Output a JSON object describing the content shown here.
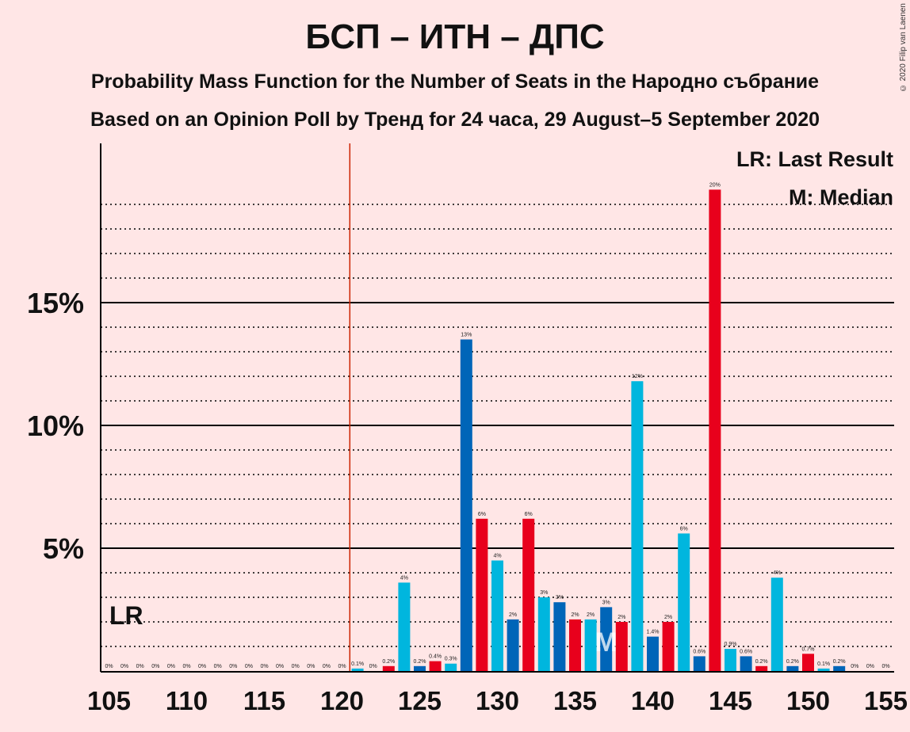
{
  "title": "БСП – ИТН – ДПС",
  "subtitle1": "Probability Mass Function for the Number of Seats in the Народно събрание",
  "subtitle2": "Based on an Opinion Poll by Тренд for 24 часа, 29 August–5 September 2020",
  "copyright": "© 2020 Filip van Laenen",
  "legend": {
    "last_result": "LR: Last Result",
    "median": "M: Median"
  },
  "markers": {
    "lr_label": "LR",
    "median_label": "M"
  },
  "colors": {
    "background": "#FFE6E6",
    "red": "#E8001C",
    "cyan": "#00B6DE",
    "blue": "#0065B8",
    "lr_line": "#CC2200"
  },
  "chart_data": {
    "type": "bar",
    "xlim": [
      105,
      155
    ],
    "ylim": [
      0,
      21
    ],
    "y_ticks": [
      5,
      10,
      15
    ],
    "y_tick_labels": [
      "5%",
      "10%",
      "15%"
    ],
    "x_ticks": [
      105,
      110,
      115,
      120,
      125,
      130,
      135,
      140,
      145,
      150,
      155
    ],
    "x_tick_labels": [
      "105",
      "110",
      "115",
      "120",
      "125",
      "130",
      "135",
      "140",
      "145",
      "150",
      "155"
    ],
    "last_result_seat": 121,
    "median_seat": 137,
    "bars": [
      {
        "seat": 105,
        "value": 0,
        "label": "0%",
        "color": "cyan"
      },
      {
        "seat": 106,
        "value": 0,
        "label": "0%",
        "color": "cyan"
      },
      {
        "seat": 107,
        "value": 0,
        "label": "0%",
        "color": "cyan"
      },
      {
        "seat": 108,
        "value": 0,
        "label": "0%",
        "color": "cyan"
      },
      {
        "seat": 109,
        "value": 0,
        "label": "0%",
        "color": "cyan"
      },
      {
        "seat": 110,
        "value": 0,
        "label": "0%",
        "color": "cyan"
      },
      {
        "seat": 111,
        "value": 0,
        "label": "0%",
        "color": "cyan"
      },
      {
        "seat": 112,
        "value": 0,
        "label": "0%",
        "color": "cyan"
      },
      {
        "seat": 113,
        "value": 0,
        "label": "0%",
        "color": "cyan"
      },
      {
        "seat": 114,
        "value": 0,
        "label": "0%",
        "color": "cyan"
      },
      {
        "seat": 115,
        "value": 0,
        "label": "0%",
        "color": "cyan"
      },
      {
        "seat": 116,
        "value": 0,
        "label": "0%",
        "color": "cyan"
      },
      {
        "seat": 117,
        "value": 0,
        "label": "0%",
        "color": "cyan"
      },
      {
        "seat": 118,
        "value": 0,
        "label": "0%",
        "color": "cyan"
      },
      {
        "seat": 119,
        "value": 0,
        "label": "0%",
        "color": "cyan"
      },
      {
        "seat": 120,
        "value": 0,
        "label": "0%",
        "color": "cyan"
      },
      {
        "seat": 121,
        "value": 0.1,
        "label": "0.1%",
        "color": "cyan"
      },
      {
        "seat": 122,
        "value": 0,
        "label": "0%",
        "color": "cyan"
      },
      {
        "seat": 123,
        "value": 0.2,
        "label": "0.2%",
        "color": "red"
      },
      {
        "seat": 124,
        "value": 3.6,
        "label": "4%",
        "color": "cyan"
      },
      {
        "seat": 125,
        "value": 0.2,
        "label": "0.2%",
        "color": "blue"
      },
      {
        "seat": 126,
        "value": 0.4,
        "label": "0.4%",
        "color": "red"
      },
      {
        "seat": 127,
        "value": 0.3,
        "label": "0.3%",
        "color": "cyan"
      },
      {
        "seat": 128,
        "value": 13.5,
        "label": "13%",
        "color": "blue"
      },
      {
        "seat": 129,
        "value": 6.2,
        "label": "6%",
        "color": "red"
      },
      {
        "seat": 130,
        "value": 4.5,
        "label": "4%",
        "color": "cyan"
      },
      {
        "seat": 131,
        "value": 2.1,
        "label": "2%",
        "color": "blue"
      },
      {
        "seat": 132,
        "value": 6.2,
        "label": "6%",
        "color": "red"
      },
      {
        "seat": 133,
        "value": 3.0,
        "label": "3%",
        "color": "cyan"
      },
      {
        "seat": 134,
        "value": 2.8,
        "label": "3%",
        "color": "blue"
      },
      {
        "seat": 135,
        "value": 2.1,
        "label": "2%",
        "color": "red"
      },
      {
        "seat": 136,
        "value": 2.1,
        "label": "2%",
        "color": "cyan"
      },
      {
        "seat": 137,
        "value": 2.6,
        "label": "3%",
        "color": "blue"
      },
      {
        "seat": 138,
        "value": 2.0,
        "label": "2%",
        "color": "red"
      },
      {
        "seat": 139,
        "value": 11.8,
        "label": "12%",
        "color": "cyan"
      },
      {
        "seat": 140,
        "value": 1.4,
        "label": "1.4%",
        "color": "blue"
      },
      {
        "seat": 141,
        "value": 2.0,
        "label": "2%",
        "color": "red"
      },
      {
        "seat": 142,
        "value": 5.6,
        "label": "6%",
        "color": "cyan"
      },
      {
        "seat": 143,
        "value": 0.6,
        "label": "0.6%",
        "color": "blue"
      },
      {
        "seat": 144,
        "value": 19.6,
        "label": "20%",
        "color": "red"
      },
      {
        "seat": 145,
        "value": 0.9,
        "label": "0.9%",
        "color": "cyan"
      },
      {
        "seat": 146,
        "value": 0.6,
        "label": "0.6%",
        "color": "blue"
      },
      {
        "seat": 147,
        "value": 0.2,
        "label": "0.2%",
        "color": "red"
      },
      {
        "seat": 148,
        "value": 3.8,
        "label": "4%",
        "color": "cyan"
      },
      {
        "seat": 149,
        "value": 0.2,
        "label": "0.2%",
        "color": "blue"
      },
      {
        "seat": 150,
        "value": 0.7,
        "label": "0.7%",
        "color": "red"
      },
      {
        "seat": 151,
        "value": 0.1,
        "label": "0.1%",
        "color": "cyan"
      },
      {
        "seat": 152,
        "value": 0.2,
        "label": "0.2%",
        "color": "blue"
      },
      {
        "seat": 153,
        "value": 0,
        "label": "0%",
        "color": "red"
      },
      {
        "seat": 154,
        "value": 0,
        "label": "0%",
        "color": "cyan"
      },
      {
        "seat": 155,
        "value": 0,
        "label": "0%",
        "color": "blue"
      }
    ]
  }
}
